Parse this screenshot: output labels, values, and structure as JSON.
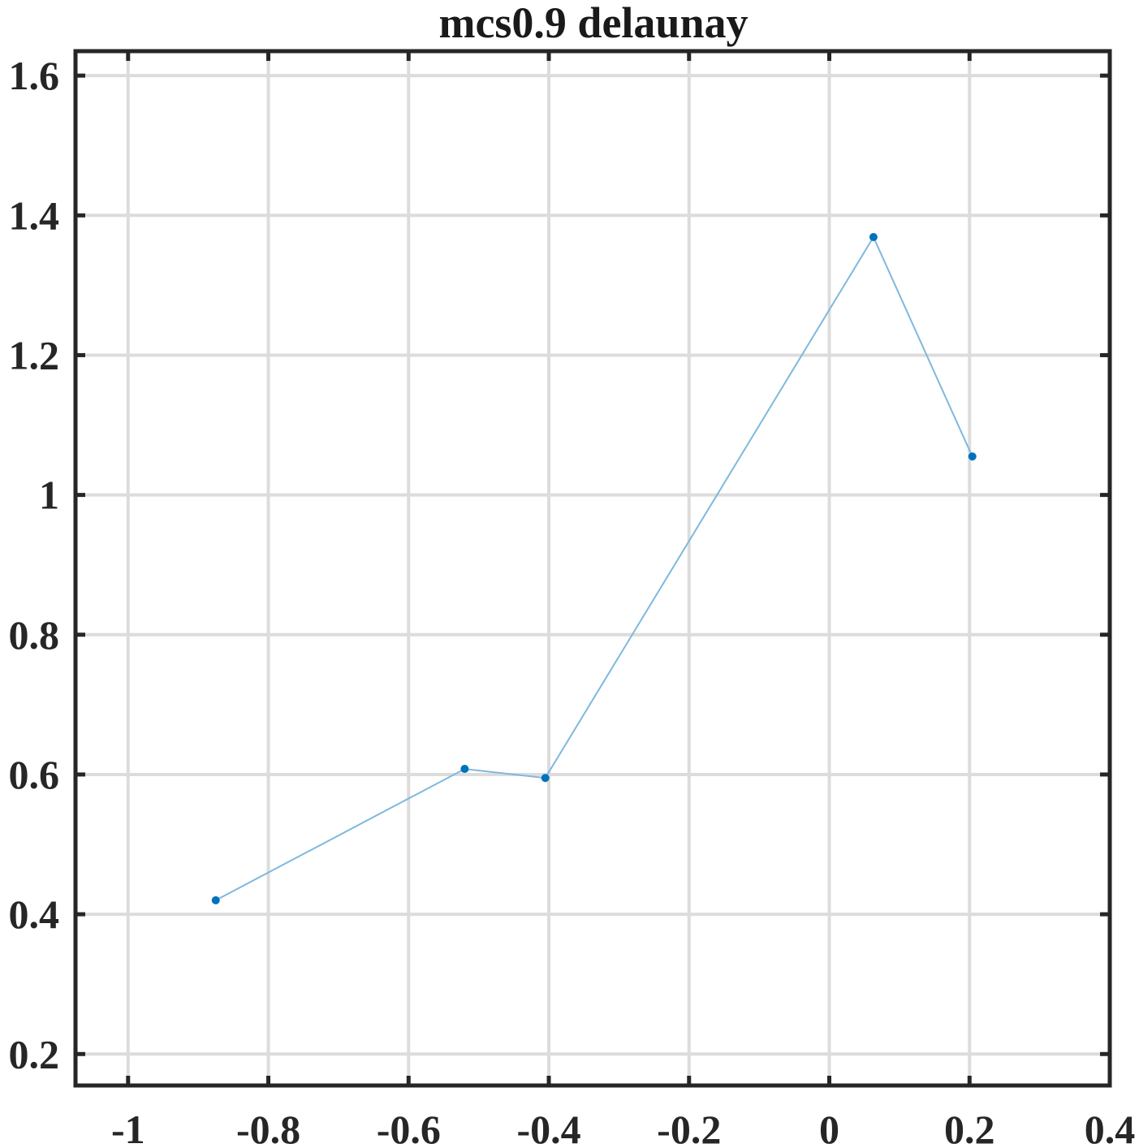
{
  "chart_data": {
    "type": "line",
    "title": "mcs0.9 delaunay",
    "xlabel": "",
    "ylabel": "",
    "xlim": [
      -1.075,
      0.4
    ],
    "ylim": [
      0.155,
      1.635
    ],
    "grid": true,
    "x_ticks": [
      -1,
      -0.8,
      -0.6,
      -0.4,
      -0.2,
      0,
      0.2,
      0.4
    ],
    "x_tick_labels": [
      "-1",
      "-0.8",
      "-0.6",
      "-0.4",
      "-0.2",
      "0",
      "0.2",
      "0.4"
    ],
    "y_ticks": [
      0.2,
      0.4,
      0.6,
      0.8,
      1.0,
      1.2,
      1.4,
      1.6
    ],
    "y_tick_labels": [
      "0.2",
      "0.4",
      "0.6",
      "0.8",
      "1",
      "1.2",
      "1.4",
      "1.6"
    ],
    "series": [
      {
        "color": "#0072BD",
        "line_color": "#7fb8de",
        "x": [
          -0.875,
          -0.52,
          -0.405,
          0.063,
          0.204
        ],
        "y": [
          0.42,
          0.608,
          0.595,
          1.369,
          1.055
        ]
      }
    ]
  }
}
